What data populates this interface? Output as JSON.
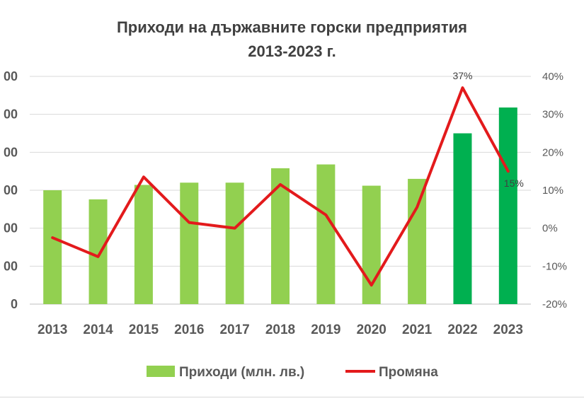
{
  "chart_data": {
    "type": "bar+line",
    "title_line1": "Приходи на държавните горски предприятия",
    "title_line2": "2013-2023 г.",
    "categories": [
      "2013",
      "2014",
      "2015",
      "2016",
      "2017",
      "2018",
      "2019",
      "2020",
      "2021",
      "2022",
      "2023"
    ],
    "left_axis": {
      "ticks": [
        0,
        50,
        100,
        150,
        200,
        250,
        300
      ],
      "tick_labels": [
        "0",
        "",
        "",
        "",
        "",
        "",
        ""
      ],
      "partial_tick_text": "00",
      "ylim": [
        0,
        300
      ]
    },
    "right_axis": {
      "ticks": [
        -20,
        -10,
        0,
        10,
        20,
        30,
        40
      ],
      "tick_labels": [
        "-20%",
        "-10%",
        "0%",
        "10%",
        "20%",
        "30%",
        "40%"
      ],
      "ylim": [
        -20,
        40
      ]
    },
    "series": [
      {
        "name": "Приходи (млн. лв.)",
        "kind": "bar",
        "axis": "left",
        "values": [
          150,
          138,
          157,
          160,
          160,
          179,
          184,
          156,
          165,
          225,
          259
        ],
        "colors": [
          "#92d050",
          "#92d050",
          "#92d050",
          "#92d050",
          "#92d050",
          "#92d050",
          "#92d050",
          "#92d050",
          "#92d050",
          "#00b050",
          "#00b050"
        ]
      },
      {
        "name": "Промяна",
        "kind": "line",
        "axis": "right",
        "color": "#e31a1c",
        "values": [
          -2.5,
          -7.5,
          13.5,
          1.5,
          0,
          11.5,
          3.5,
          -15,
          5.5,
          37,
          15
        ]
      }
    ],
    "data_labels": [
      {
        "category": "2022",
        "text": "37%"
      },
      {
        "category": "2023",
        "text": "15%"
      }
    ],
    "legend": {
      "placement": "bottom",
      "items": [
        {
          "label": "Приходи (млн. лв.)",
          "marker": "bar",
          "color": "#92d050"
        },
        {
          "label": "Промяна",
          "marker": "line",
          "color": "#e31a1c"
        }
      ]
    },
    "grid": true
  }
}
